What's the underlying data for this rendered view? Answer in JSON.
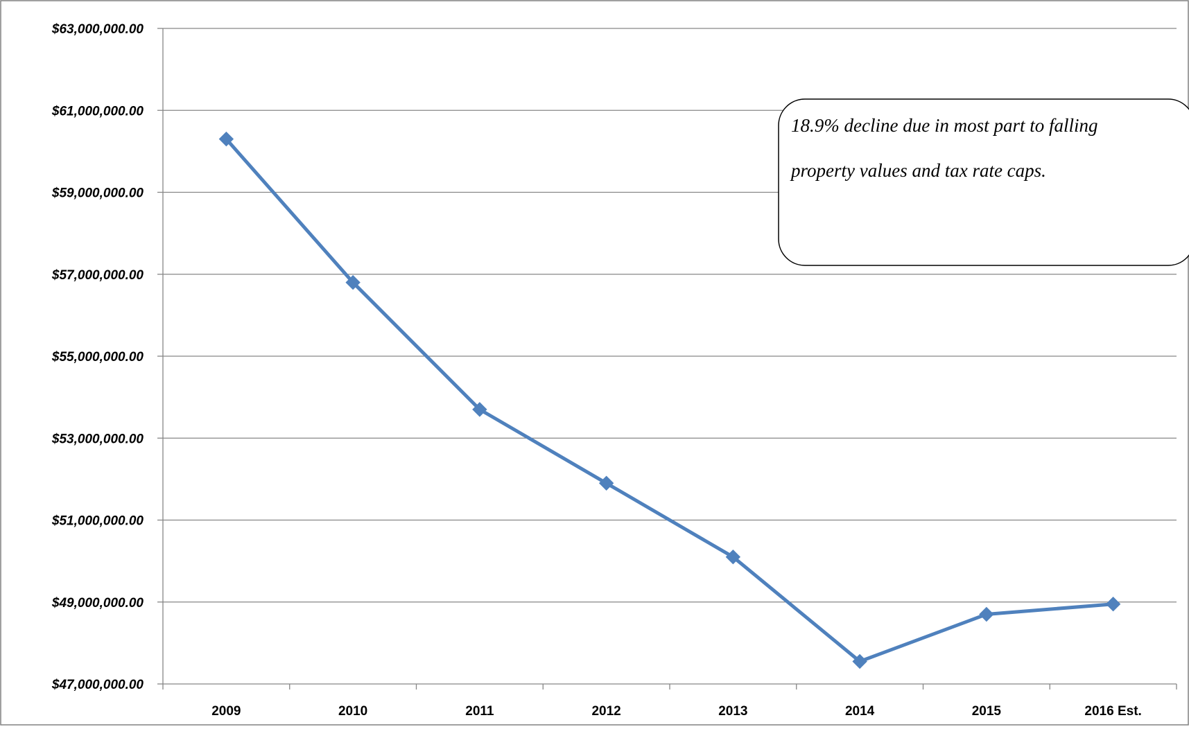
{
  "chart_data": {
    "type": "line",
    "title": "",
    "xlabel": "",
    "ylabel": "",
    "categories": [
      "2009",
      "2010",
      "2011",
      "2012",
      "2013",
      "2014",
      "2015",
      "2016 Est."
    ],
    "series": [
      {
        "values": [
          60300000,
          56800000,
          53700000,
          51900000,
          50100000,
          47550000,
          48700000,
          48950000
        ],
        "color": "#4F81BD",
        "marker": "diamond"
      }
    ],
    "ylim": [
      47000000,
      63000000
    ],
    "yticks": [
      63000000,
      61000000,
      59000000,
      57000000,
      55000000,
      53000000,
      51000000,
      49000000,
      47000000
    ],
    "ytick_labels": [
      "$63,000,000.00",
      "$61,000,000.00",
      "$59,000,000.00",
      "$57,000,000.00",
      "$55,000,000.00",
      "$53,000,000.00",
      "$51,000,000.00",
      "$49,000,000.00",
      "$47,000,000.00"
    ],
    "grid": true,
    "annotation": {
      "lines": [
        "18.9% decline due in most part to falling",
        "property values and tax rate caps."
      ]
    }
  }
}
